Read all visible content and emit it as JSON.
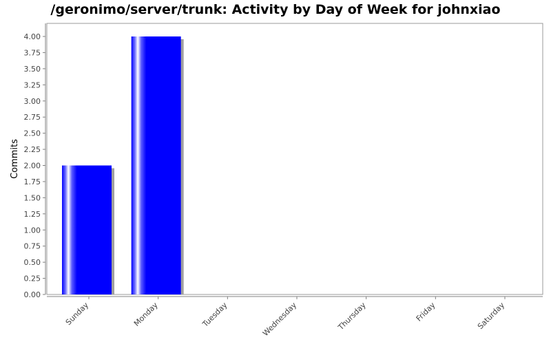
{
  "chart_data": {
    "type": "bar",
    "title": "/geronimo/server/trunk: Activity by Day of Week for johnxiao",
    "xlabel": "",
    "ylabel": "Commits",
    "categories": [
      "Sunday",
      "Monday",
      "Tuesday",
      "Wednesday",
      "Thursday",
      "Friday",
      "Saturday"
    ],
    "values": [
      2,
      4,
      0,
      0,
      0,
      0,
      0
    ],
    "ylim": [
      0,
      4.0
    ],
    "yticks": [
      "0.00",
      "0.25",
      "0.50",
      "0.75",
      "1.00",
      "1.25",
      "1.50",
      "1.75",
      "2.00",
      "2.25",
      "2.50",
      "2.75",
      "3.00",
      "3.25",
      "3.50",
      "3.75",
      "4.00"
    ],
    "grid": false,
    "colors": {
      "bar": "#0000ff",
      "shadow": "#a0a0a0",
      "axis": "#808080"
    }
  }
}
